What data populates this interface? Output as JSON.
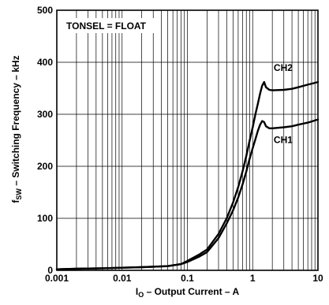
{
  "chart_data": {
    "type": "line",
    "xscale": "log",
    "xlim": [
      0.001,
      10
    ],
    "ylim": [
      0,
      500
    ],
    "grid": true,
    "xticks": [
      {
        "value": 0.001,
        "label": "0.001"
      },
      {
        "value": 0.01,
        "label": "0.01"
      },
      {
        "value": 0.1,
        "label": "0.1"
      },
      {
        "value": 1,
        "label": "1"
      },
      {
        "value": 10,
        "label": "10"
      }
    ],
    "yticks": [
      {
        "value": 0,
        "label": "0"
      },
      {
        "value": 100,
        "label": "100"
      },
      {
        "value": 200,
        "label": "200"
      },
      {
        "value": 300,
        "label": "300"
      },
      {
        "value": 400,
        "label": "400"
      },
      {
        "value": 500,
        "label": "500"
      }
    ],
    "xlabel": {
      "main": "I",
      "sub": "O",
      "rest": " – Output Current – A"
    },
    "ylabel": {
      "main": "f",
      "sub": "SW",
      "rest": " – Switching Frequency – kHz"
    },
    "annotation": "TONSEL = FLOAT",
    "series": [
      {
        "name": "CH2",
        "label_at": [
          2.1,
          383
        ],
        "x": [
          0.001,
          0.002,
          0.005,
          0.01,
          0.02,
          0.05,
          0.08,
          0.1,
          0.15,
          0.2,
          0.3,
          0.4,
          0.5,
          0.6,
          0.7,
          0.8,
          0.9,
          1.0,
          1.1,
          1.2,
          1.3,
          1.4,
          1.5,
          1.6,
          1.8,
          2,
          3,
          4,
          5,
          7,
          10
        ],
        "y": [
          2,
          3,
          4,
          5,
          6,
          8,
          12,
          18,
          30,
          40,
          70,
          100,
          130,
          160,
          190,
          220,
          250,
          275,
          300,
          320,
          340,
          355,
          362,
          352,
          347,
          346,
          347,
          349,
          352,
          357,
          362
        ]
      },
      {
        "name": "CH1",
        "label_at": [
          2.1,
          245
        ],
        "x": [
          0.001,
          0.002,
          0.005,
          0.01,
          0.02,
          0.05,
          0.08,
          0.1,
          0.15,
          0.2,
          0.3,
          0.4,
          0.5,
          0.6,
          0.7,
          0.8,
          0.9,
          1.0,
          1.1,
          1.2,
          1.3,
          1.4,
          1.5,
          1.6,
          1.8,
          2,
          3,
          4,
          5,
          7,
          10
        ],
        "y": [
          2,
          3,
          4,
          5,
          6,
          8,
          12,
          16,
          26,
          35,
          62,
          90,
          115,
          140,
          165,
          190,
          215,
          235,
          252,
          268,
          280,
          287,
          285,
          277,
          273,
          273,
          275,
          277,
          280,
          284,
          290
        ]
      }
    ]
  }
}
